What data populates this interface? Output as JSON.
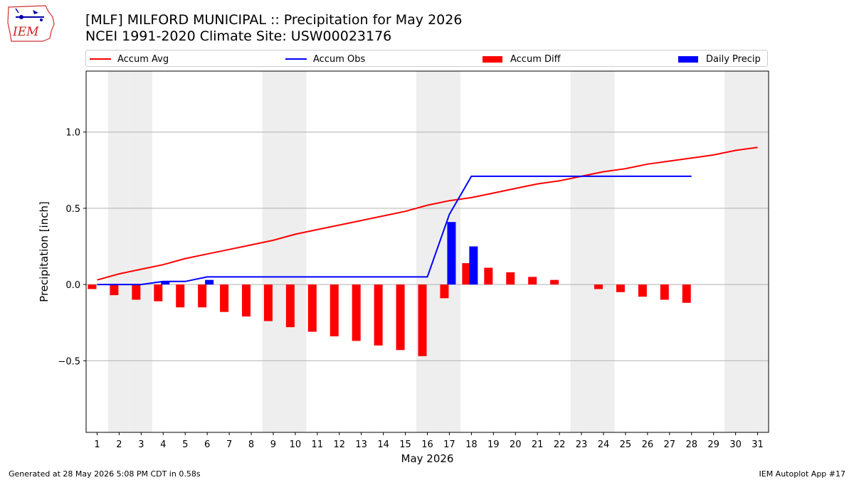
{
  "header": {
    "logo_text": "IEM",
    "title_line1": "[MLF] MILFORD MUNICIPAL :: Precipitation for May 2026",
    "title_line2": "NCEI 1991-2020 Climate Site: USW00023176"
  },
  "legend": {
    "accum_avg": "Accum Avg",
    "accum_obs": "Accum Obs",
    "accum_diff": "Accum Diff",
    "daily_precip": "Daily Precip"
  },
  "colors": {
    "avg": "#ff0000",
    "obs": "#0000ff",
    "diff": "#ff0000",
    "daily": "#0000ff",
    "weekend_shade": "#eeeeee",
    "grid": "#b0b0b0"
  },
  "chart_data": {
    "type": "bar",
    "xlabel": "May 2026",
    "ylabel": "Precipitation [inch]",
    "xlim": [
      0.5,
      31.5
    ],
    "ylim": [
      -0.97,
      1.4
    ],
    "yticks": [
      -0.5,
      0.0,
      0.5,
      1.0
    ],
    "ytick_labels": [
      "−0.5",
      "0.0",
      "0.5",
      "1.0"
    ],
    "grid_y": true,
    "legend_position": "top",
    "days": [
      1,
      2,
      3,
      4,
      5,
      6,
      7,
      8,
      9,
      10,
      11,
      12,
      13,
      14,
      15,
      16,
      17,
      18,
      19,
      20,
      21,
      22,
      23,
      24,
      25,
      26,
      27,
      28,
      29,
      30,
      31
    ],
    "shaded_weekend_days": [
      2,
      3,
      9,
      10,
      16,
      17,
      23,
      24,
      30,
      31
    ],
    "accum_avg": [
      0.03,
      0.07,
      0.1,
      0.13,
      0.17,
      0.2,
      0.23,
      0.26,
      0.29,
      0.33,
      0.36,
      0.39,
      0.42,
      0.45,
      0.48,
      0.52,
      0.55,
      0.57,
      0.6,
      0.63,
      0.66,
      0.68,
      0.71,
      0.74,
      0.76,
      0.79,
      0.81,
      0.83,
      0.85,
      0.88,
      0.9
    ],
    "accum_obs": [
      0.0,
      0.0,
      0.0,
      0.02,
      0.02,
      0.05,
      0.05,
      0.05,
      0.05,
      0.05,
      0.05,
      0.05,
      0.05,
      0.05,
      0.05,
      0.05,
      0.46,
      0.71,
      0.71,
      0.71,
      0.71,
      0.71,
      0.71,
      0.71,
      0.71,
      0.71,
      0.71,
      0.71
    ],
    "accum_diff": [
      -0.03,
      -0.07,
      -0.1,
      -0.11,
      -0.15,
      -0.15,
      -0.18,
      -0.21,
      -0.24,
      -0.28,
      -0.31,
      -0.34,
      -0.37,
      -0.4,
      -0.43,
      -0.47,
      -0.09,
      0.14,
      0.11,
      0.08,
      0.05,
      0.03,
      0.0,
      -0.03,
      -0.05,
      -0.08,
      -0.1,
      -0.12
    ],
    "daily_precip": [
      0.0,
      0.0,
      0.0,
      0.02,
      0.0,
      0.03,
      0.0,
      0.0,
      0.0,
      0.0,
      0.0,
      0.0,
      0.0,
      0.0,
      0.0,
      0.0,
      0.41,
      0.25,
      0.0,
      0.0,
      0.0,
      0.0,
      0.0,
      0.0,
      0.0,
      0.0,
      0.0,
      0.0
    ]
  },
  "footer": {
    "generated": "Generated at 28 May 2026 5:08 PM CDT in 0.58s",
    "app": "IEM Autoplot App #17"
  }
}
